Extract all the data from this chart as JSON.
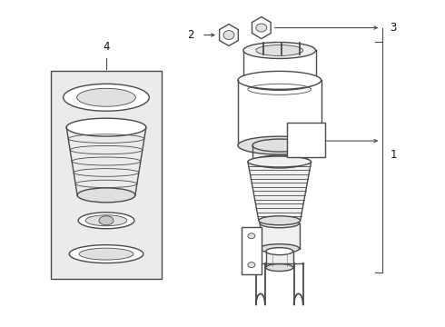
{
  "background_color": "#ffffff",
  "line_color": "#4a4a4a",
  "fill_light": "#f0f0f0",
  "fill_mid": "#e0e0e0",
  "fill_dark": "#c8c8c8",
  "fig_width": 4.9,
  "fig_height": 3.6,
  "dpi": 100,
  "label_fontsize": 8.5,
  "label_color": "#111111",
  "lw_main": 1.0,
  "lw_thin": 0.6
}
